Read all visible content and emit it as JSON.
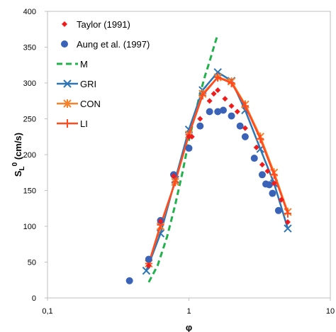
{
  "chart_data": {
    "type": "scatter",
    "xlabel": "φ",
    "ylabel": "S",
    "ylabel_sub": "L",
    "ylabel_sup": "0",
    "ylabel_unit": " (cm/s)",
    "xscale": "log",
    "xlim": [
      0.1,
      10
    ],
    "ylim": [
      0,
      400
    ],
    "xticks": [
      0.1,
      1,
      10
    ],
    "xtick_labels": [
      "0,1",
      "1",
      "10"
    ],
    "yticks": [
      0,
      50,
      100,
      150,
      200,
      250,
      300,
      350,
      400
    ],
    "ytick_labels": [
      "0",
      "50",
      "100",
      "150",
      "200",
      "250",
      "300",
      "350",
      "400"
    ],
    "grid": false,
    "legend_position": "top-left",
    "series": [
      {
        "name": "Taylor (1991)",
        "style": "marker",
        "marker": "diamond",
        "color": "#ee1c1c",
        "x": [
          0.52,
          0.63,
          0.78,
          1.0,
          1.05,
          1.2,
          1.4,
          1.5,
          1.6,
          1.8,
          2.0,
          2.2,
          2.5,
          3.0,
          3.3,
          3.6,
          4.0,
          4.5,
          5.0
        ],
        "y": [
          45,
          107,
          170,
          225,
          225,
          250,
          275,
          285,
          290,
          278,
          268,
          260,
          237,
          210,
          186,
          177,
          160,
          137,
          106
        ]
      },
      {
        "name": "Aung et al. (1997)",
        "style": "marker",
        "marker": "circle",
        "color": "#3a63b8",
        "x": [
          0.38,
          0.52,
          0.63,
          0.78,
          1.0,
          1.2,
          1.4,
          1.6,
          1.75,
          2.0,
          2.3,
          2.5,
          2.9,
          3.3,
          3.5,
          3.7,
          3.9,
          4.3
        ],
        "y": [
          24,
          54,
          108,
          172,
          209,
          240,
          260,
          260,
          262,
          254,
          240,
          225,
          195,
          172,
          159,
          158,
          146,
          122
        ]
      },
      {
        "name": "M",
        "style": "dashed-line",
        "color": "#22b14c",
        "x": [
          0.52,
          0.6,
          0.7,
          0.8,
          0.9,
          1.0,
          1.1,
          1.2,
          1.3,
          1.4,
          1.5,
          1.6
        ],
        "y": [
          22,
          45,
          85,
          130,
          175,
          220,
          255,
          285,
          310,
          330,
          350,
          368
        ]
      },
      {
        "name": "GRI",
        "style": "line-marker",
        "marker": "x",
        "color": "#2e75b6",
        "x": [
          0.5,
          0.63,
          0.8,
          1.0,
          1.25,
          1.6,
          2.0,
          2.5,
          3.2,
          4.0,
          5.0
        ],
        "y": [
          38,
          90,
          165,
          235,
          290,
          315,
          303,
          262,
          208,
          160,
          97
        ]
      },
      {
        "name": "CON",
        "style": "line-marker",
        "marker": "asterisk",
        "color": "#f5822a",
        "x": [
          0.52,
          0.63,
          0.8,
          1.0,
          1.25,
          1.6,
          2.0,
          2.5,
          3.2,
          4.0,
          5.0
        ],
        "y": [
          48,
          100,
          162,
          228,
          285,
          308,
          302,
          270,
          225,
          175,
          120
        ]
      },
      {
        "name": "LI",
        "style": "line-marker",
        "marker": "plus",
        "color": "#ff4b1f",
        "x": [
          0.52,
          0.63,
          0.8,
          1.0,
          1.25,
          1.6,
          2.0,
          2.5,
          3.2,
          4.0,
          5.0
        ],
        "y": [
          48,
          102,
          162,
          228,
          283,
          308,
          300,
          268,
          222,
          172,
          118
        ]
      }
    ]
  }
}
